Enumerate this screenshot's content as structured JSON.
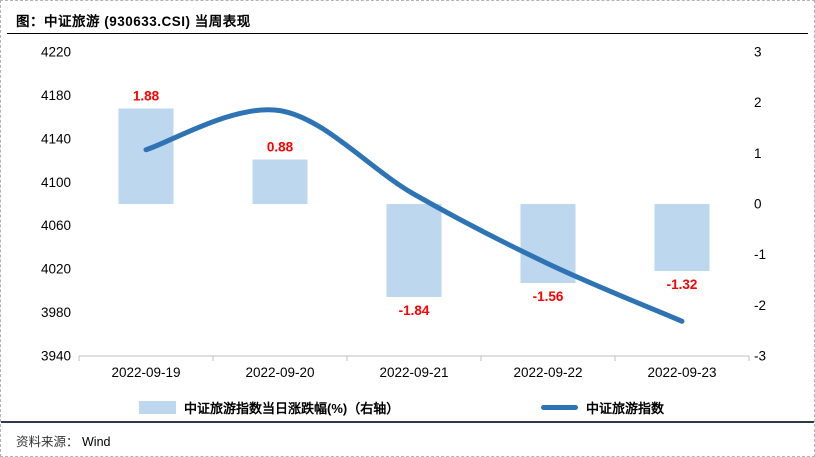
{
  "header": {
    "title": "图：中证旅游 (930633.CSI) 当周表现"
  },
  "source": {
    "label": "资料来源：",
    "value": "Wind"
  },
  "colors": {
    "bar_fill": "#BDD7EE",
    "line_stroke": "#2E74B5",
    "data_label": "#FF0000",
    "axis_line": "#BFBFBF",
    "tick_text": "#000000",
    "title_rule": "#000000",
    "source_rule": "#2E3A4A"
  },
  "chart_data": {
    "type": "bar+line combo",
    "categories": [
      "2022-09-19",
      "2022-09-20",
      "2022-09-21",
      "2022-09-22",
      "2022-09-23"
    ],
    "series": [
      {
        "name": "中证旅游指数当日涨跌幅(%)（右轴）",
        "type": "bar",
        "axis": "right",
        "values": [
          1.88,
          0.88,
          -1.84,
          -1.56,
          -1.32
        ],
        "data_labels": [
          "1.88",
          "0.88",
          "-1.84",
          "-1.56",
          "-1.32"
        ],
        "color": "#BDD7EE",
        "label_color": "#FF0000"
      },
      {
        "name": "中证旅游指数",
        "type": "line",
        "axis": "left",
        "values": [
          4130,
          4166,
          4089,
          4025,
          3972
        ],
        "color": "#2E74B5",
        "smoothed": true
      }
    ],
    "left_axis": {
      "ticks": [
        4220,
        4180,
        4140,
        4100,
        4060,
        4020,
        3980,
        3940
      ],
      "min": 3940,
      "max": 4220
    },
    "right_axis": {
      "ticks": [
        3,
        2,
        1,
        0,
        -1,
        -2,
        -3
      ],
      "min": -3,
      "max": 3
    },
    "grid": false,
    "legend_position": "bottom",
    "title": "图：中证旅游 (930633.CSI) 当周表现"
  }
}
